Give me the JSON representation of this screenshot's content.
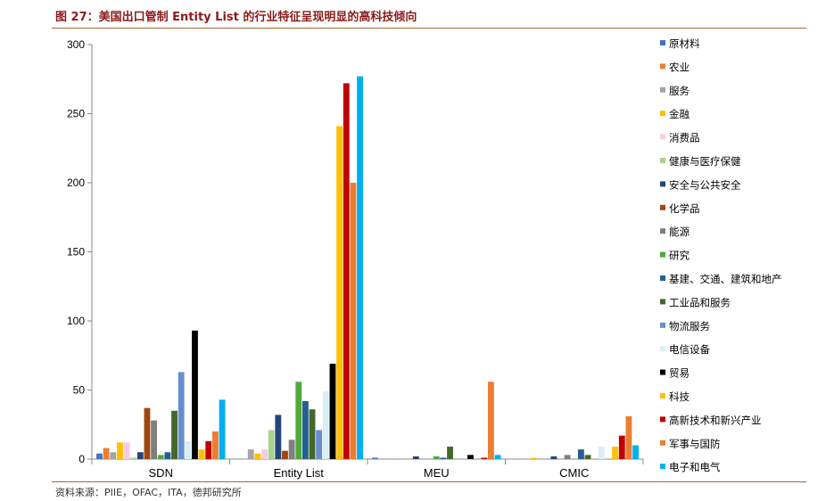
{
  "figure": {
    "title": "图 27：美国出口管制 Entity List 的行业特征呈现明显的高科技倾向",
    "source": "资料来源：PIIE，OFAC，ITA，德邦研究所"
  },
  "chart_data": {
    "type": "bar",
    "categories": [
      "SDN",
      "Entity List",
      "MEU",
      "CMIC"
    ],
    "ylim": [
      0,
      300
    ],
    "yticks": [
      0,
      50,
      100,
      150,
      200,
      250,
      300
    ],
    "grid": false,
    "legend_position": "right",
    "series": [
      {
        "name": "原材料",
        "color": "#4472C4",
        "values": [
          4,
          0,
          1,
          0
        ]
      },
      {
        "name": "农业",
        "color": "#ED7D31",
        "values": [
          8,
          0,
          0,
          0
        ]
      },
      {
        "name": "服务",
        "color": "#A5A5A5",
        "values": [
          5,
          7,
          0,
          0
        ]
      },
      {
        "name": "金融",
        "color": "#FFC000",
        "values": [
          12,
          4,
          0,
          1
        ]
      },
      {
        "name": "消费品",
        "color": "#F8CBE3",
        "values": [
          12,
          7,
          0,
          0
        ]
      },
      {
        "name": "健康与医疗保健",
        "color": "#A9D18E",
        "values": [
          1,
          21,
          0,
          0
        ]
      },
      {
        "name": "安全与公共安全",
        "color": "#264478",
        "values": [
          5,
          32,
          2,
          2
        ]
      },
      {
        "name": "化学品",
        "color": "#9E480E",
        "values": [
          37,
          6,
          0,
          0
        ]
      },
      {
        "name": "能源",
        "color": "#7F7F7F",
        "values": [
          28,
          14,
          0,
          3
        ]
      },
      {
        "name": "研究",
        "color": "#4EAB3A",
        "values": [
          3,
          56,
          2,
          0
        ]
      },
      {
        "name": "基建、交通、建筑和地产",
        "color": "#255E91",
        "values": [
          5,
          42,
          1,
          7
        ]
      },
      {
        "name": "工业品和服务",
        "color": "#43682B",
        "values": [
          35,
          36,
          9,
          3
        ]
      },
      {
        "name": "物流服务",
        "color": "#698ED0",
        "values": [
          63,
          21,
          0,
          0
        ]
      },
      {
        "name": "电信设备",
        "color": "#DAEEF3",
        "values": [
          13,
          49,
          0,
          9
        ]
      },
      {
        "name": "贸易",
        "color": "#000000",
        "values": [
          93,
          69,
          3,
          0
        ]
      },
      {
        "name": "科技",
        "color": "#FFC000",
        "values": [
          7,
          241,
          0,
          9
        ]
      },
      {
        "name": "高新技术和新兴产业",
        "color": "#C00000",
        "values": [
          13,
          272,
          1,
          17
        ]
      },
      {
        "name": "军事与国防",
        "color": "#ED7D31",
        "values": [
          20,
          200,
          56,
          31
        ]
      },
      {
        "name": "电子和电气",
        "color": "#00B0F0",
        "values": [
          43,
          277,
          3,
          10
        ]
      }
    ]
  }
}
